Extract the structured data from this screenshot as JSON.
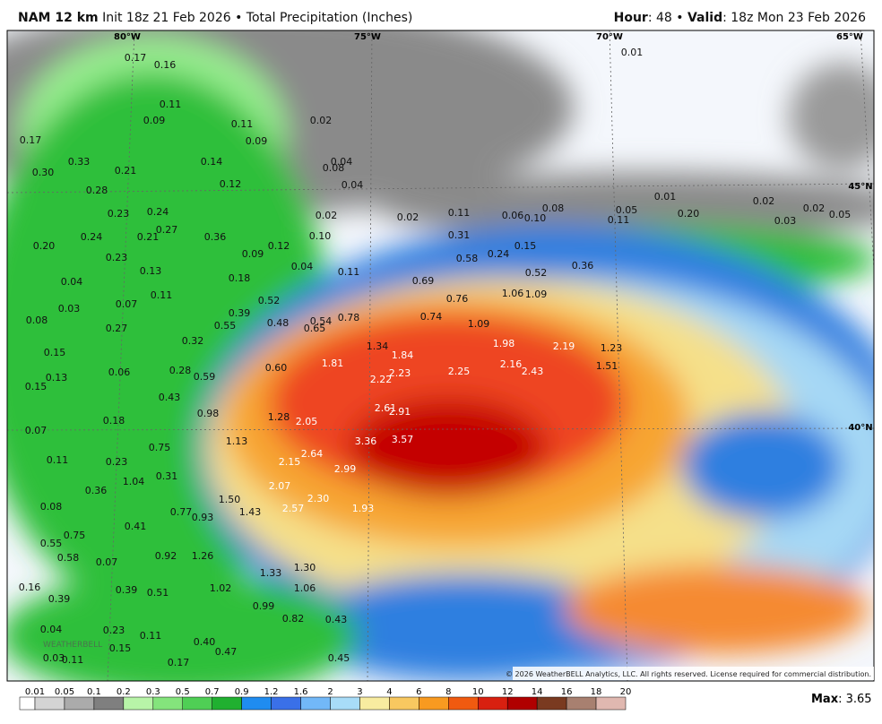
{
  "header": {
    "model": "NAM 12 km",
    "init": "Init 18z 21 Feb 2026 • Total Precipitation (Inches)",
    "hour_label": "Hour",
    "hour": ": 48 • ",
    "valid_label": "Valid",
    "valid": ": 18z Mon 23 Feb 2026"
  },
  "map": {
    "lon_labels": [
      "80°W",
      "75°W",
      "70°W",
      "65°W"
    ],
    "lat_labels": [
      "45°N",
      "40°N"
    ],
    "point_labels": [
      "0.17",
      "0.16",
      "0.01",
      "0.11",
      "0.09",
      "0.11",
      "0.02",
      "0.09",
      "0.17",
      "0.33",
      "0.21",
      "0.14",
      "0.08",
      "0.04",
      "0.30",
      "0.28",
      "0.12",
      "0.04",
      "0.01",
      "0.02",
      "0.02",
      "0.05",
      "0.23",
      "0.24",
      "0.02",
      "0.02",
      "0.11",
      "0.06",
      "0.10",
      "0.08",
      "0.05",
      "0.11",
      "0.20",
      "0.03",
      "0.20",
      "0.24",
      "0.21",
      "0.27",
      "0.36",
      "0.10",
      "0.12",
      "0.31",
      "0.15",
      "0.24",
      "0.58",
      "0.36",
      "0.23",
      "0.09",
      "0.04",
      "0.11",
      "0.13",
      "0.18",
      "0.69",
      "0.52",
      "0.04",
      "0.11",
      "0.52",
      "1.06",
      "1.09",
      "0.76",
      "0.03",
      "0.07",
      "0.39",
      "0.48",
      "0.54",
      "0.78",
      "0.74",
      "1.09",
      "0.08",
      "0.27",
      "0.55",
      "0.65",
      "0.32",
      "1.34",
      "1.98",
      "2.19",
      "1.23",
      "0.15",
      "1.84",
      "0.06",
      "0.28",
      "0.60",
      "1.81",
      "2.16",
      "2.43",
      "1.51",
      "0.13",
      "0.59",
      "2.23",
      "2.25",
      "2.22",
      "0.15",
      "0.43",
      "2.61",
      "2.91",
      "0.98",
      "1.28",
      "2.05",
      "0.18",
      "0.07",
      "1.13",
      "3.36",
      "3.57",
      "0.75",
      "2.64",
      "0.11",
      "0.23",
      "2.15",
      "2.99",
      "0.31",
      "1.04",
      "0.36",
      "2.07",
      "1.50",
      "2.30",
      "0.08",
      "0.77",
      "1.43",
      "2.57",
      "1.93",
      "0.93",
      "0.41",
      "0.75",
      "0.55",
      "0.58",
      "0.07",
      "0.92",
      "1.26",
      "1.30",
      "1.33",
      "0.16",
      "0.39",
      "0.51",
      "1.02",
      "1.06",
      "0.39",
      "0.99",
      "0.82",
      "0.43",
      "0.04",
      "0.23",
      "0.11",
      "0.15",
      "0.40",
      "0.47",
      "0.03",
      "0.11",
      "0.17",
      "0.45"
    ],
    "watermark": "WEATHERBELL",
    "copyright": "© 2026 WeatherBELL Analytics, LLC. All rights reserved. License required for commercial distribution."
  },
  "legend": {
    "ticks": [
      0.01,
      0.05,
      0.1,
      0.2,
      0.3,
      0.5,
      0.7,
      0.9,
      1.2,
      1.6,
      2,
      3,
      4,
      6,
      8,
      10,
      12,
      14,
      16,
      18,
      20
    ],
    "colors": [
      "#ffffff",
      "#d4d4d4",
      "#ababab",
      "#7f7f7f",
      "#b8f4a8",
      "#84e47c",
      "#4fcf55",
      "#20b030",
      "#1f8cf0",
      "#3a70e8",
      "#72b8f8",
      "#a8dcf8",
      "#f8eca0",
      "#f8c860",
      "#f89a20",
      "#f05a10",
      "#d82010",
      "#b00000",
      "#7a3a20",
      "#a88070",
      "#e0b8b0"
    ]
  },
  "max": {
    "label": "Max",
    "value": ": 3.65"
  }
}
